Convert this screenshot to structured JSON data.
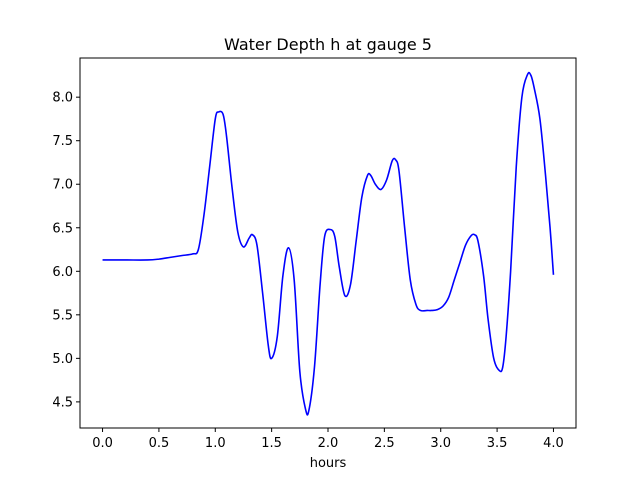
{
  "chart_data": {
    "type": "line",
    "title": "Water Depth h at gauge 5",
    "xlabel": "hours",
    "ylabel": "",
    "xlim": [
      -0.2,
      4.2
    ],
    "ylim": [
      4.2,
      8.45
    ],
    "xticks": [
      "0.0",
      "0.5",
      "1.0",
      "1.5",
      "2.0",
      "2.5",
      "3.0",
      "3.5",
      "4.0"
    ],
    "yticks": [
      "4.5",
      "5.0",
      "5.5",
      "6.0",
      "6.5",
      "7.0",
      "7.5",
      "8.0"
    ],
    "grid": false,
    "series": [
      {
        "color": "#0000ff",
        "x": [
          0.0,
          0.2,
          0.4,
          0.5,
          0.6,
          0.7,
          0.8,
          0.85,
          0.9,
          0.95,
          1.0,
          1.03,
          1.07,
          1.1,
          1.15,
          1.2,
          1.25,
          1.3,
          1.33,
          1.37,
          1.42,
          1.47,
          1.5,
          1.55,
          1.6,
          1.65,
          1.7,
          1.75,
          1.8,
          1.83,
          1.88,
          1.93,
          1.97,
          2.02,
          2.06,
          2.1,
          2.15,
          2.2,
          2.25,
          2.3,
          2.35,
          2.38,
          2.42,
          2.47,
          2.52,
          2.57,
          2.6,
          2.63,
          2.68,
          2.73,
          2.78,
          2.82,
          2.88,
          2.92,
          2.97,
          3.02,
          3.07,
          3.12,
          3.17,
          3.22,
          3.27,
          3.3,
          3.33,
          3.38,
          3.42,
          3.47,
          3.52,
          3.55,
          3.58,
          3.62,
          3.67,
          3.72,
          3.77,
          3.8,
          3.83,
          3.88,
          3.93,
          3.97,
          4.0
        ],
        "y": [
          6.13,
          6.13,
          6.13,
          6.14,
          6.16,
          6.18,
          6.2,
          6.25,
          6.65,
          7.2,
          7.75,
          7.83,
          7.8,
          7.55,
          6.95,
          6.45,
          6.28,
          6.38,
          6.42,
          6.3,
          5.75,
          5.15,
          5.0,
          5.25,
          5.95,
          6.27,
          5.9,
          4.85,
          4.42,
          4.4,
          4.9,
          5.85,
          6.4,
          6.48,
          6.4,
          6.05,
          5.72,
          5.85,
          6.35,
          6.85,
          7.1,
          7.1,
          7.0,
          6.94,
          7.05,
          7.27,
          7.28,
          7.15,
          6.5,
          5.9,
          5.62,
          5.55,
          5.55,
          5.55,
          5.56,
          5.6,
          5.7,
          5.9,
          6.1,
          6.3,
          6.41,
          6.42,
          6.35,
          5.95,
          5.45,
          5.0,
          4.86,
          4.9,
          5.25,
          6.0,
          7.2,
          8.0,
          8.26,
          8.25,
          8.1,
          7.75,
          7.1,
          6.5,
          5.96
        ]
      }
    ]
  }
}
